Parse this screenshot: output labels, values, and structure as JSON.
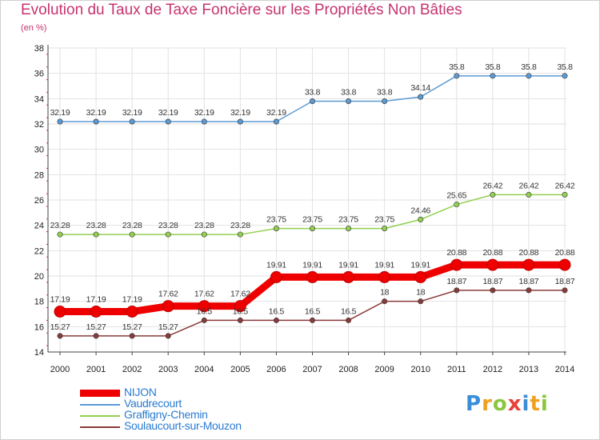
{
  "title": "Evolution du Taux de Taxe Foncière sur les Propriétés Non Bâties",
  "unit": "(en %)",
  "logo": {
    "text": "Proxiti",
    "colors": [
      "#3a8dd8",
      "#f0a020",
      "#8cc63f",
      "#e8403a",
      "#3a8dd8",
      "#f0a020",
      "#8cc63f"
    ]
  },
  "chart_data": {
    "type": "line",
    "title": "Evolution du Taux de Taxe Foncière sur les Propriétés Non Bâties",
    "ylabel": "(en %)",
    "xlabel": "",
    "ylim": [
      14,
      38
    ],
    "yticks": [
      14,
      16,
      18,
      20,
      22,
      24,
      26,
      28,
      30,
      32,
      34,
      36,
      38
    ],
    "grid": true,
    "categories": [
      "2000",
      "2001",
      "2002",
      "2003",
      "2004",
      "2005",
      "2006",
      "2007",
      "2008",
      "2009",
      "2010",
      "2011",
      "2012",
      "2013",
      "2014"
    ],
    "series": [
      {
        "name": "NIJON",
        "color": "#ee0000",
        "values": [
          17.19,
          17.19,
          17.19,
          17.62,
          17.62,
          17.62,
          19.91,
          19.91,
          19.91,
          19.91,
          19.91,
          20.88,
          20.88,
          20.88,
          20.88
        ],
        "labels": [
          "17.19",
          "17.19",
          "17.19",
          "17.62",
          "17.62",
          "17.62",
          "19.91",
          "19.91",
          "19.91",
          "19.91",
          "19.91",
          "20.88",
          "20.88",
          "20.88",
          "20.88"
        ]
      },
      {
        "name": "Vaudrecourt",
        "color": "#5b9bd5",
        "values": [
          32.19,
          32.19,
          32.19,
          32.19,
          32.19,
          32.19,
          32.19,
          33.8,
          33.8,
          33.8,
          34.14,
          35.8,
          35.8,
          35.8,
          35.8
        ],
        "labels": [
          "32.19",
          "32.19",
          "32.19",
          "32.19",
          "32.19",
          "32.19",
          "32.19",
          "33.8",
          "33.8",
          "33.8",
          "34.14",
          "35.8",
          "35.8",
          "35.8",
          "35.8"
        ]
      },
      {
        "name": "Graffigny-Chemin",
        "color": "#92d050",
        "values": [
          23.28,
          23.28,
          23.28,
          23.28,
          23.28,
          23.28,
          23.75,
          23.75,
          23.75,
          23.75,
          24.46,
          25.65,
          26.42,
          26.42,
          26.42
        ],
        "labels": [
          "23.28",
          "23.28",
          "23.28",
          "23.28",
          "23.28",
          "23.28",
          "23.75",
          "23.75",
          "23.75",
          "23.75",
          "24.46",
          "25.65",
          "26.42",
          "26.42",
          "26.42"
        ]
      },
      {
        "name": "Soulaucourt-sur-Mouzon",
        "color": "#8b3a3a",
        "values": [
          15.27,
          15.27,
          15.27,
          15.27,
          16.5,
          16.5,
          16.5,
          16.5,
          16.5,
          18,
          18,
          18.87,
          18.87,
          18.87,
          18.87
        ],
        "labels": [
          "15.27",
          "15.27",
          "15.27",
          "15.27",
          "16.5",
          "16.5",
          "16.5",
          "16.5",
          "16.5",
          "18",
          "18",
          "18.87",
          "18.87",
          "18.87",
          "18.87"
        ]
      }
    ]
  }
}
